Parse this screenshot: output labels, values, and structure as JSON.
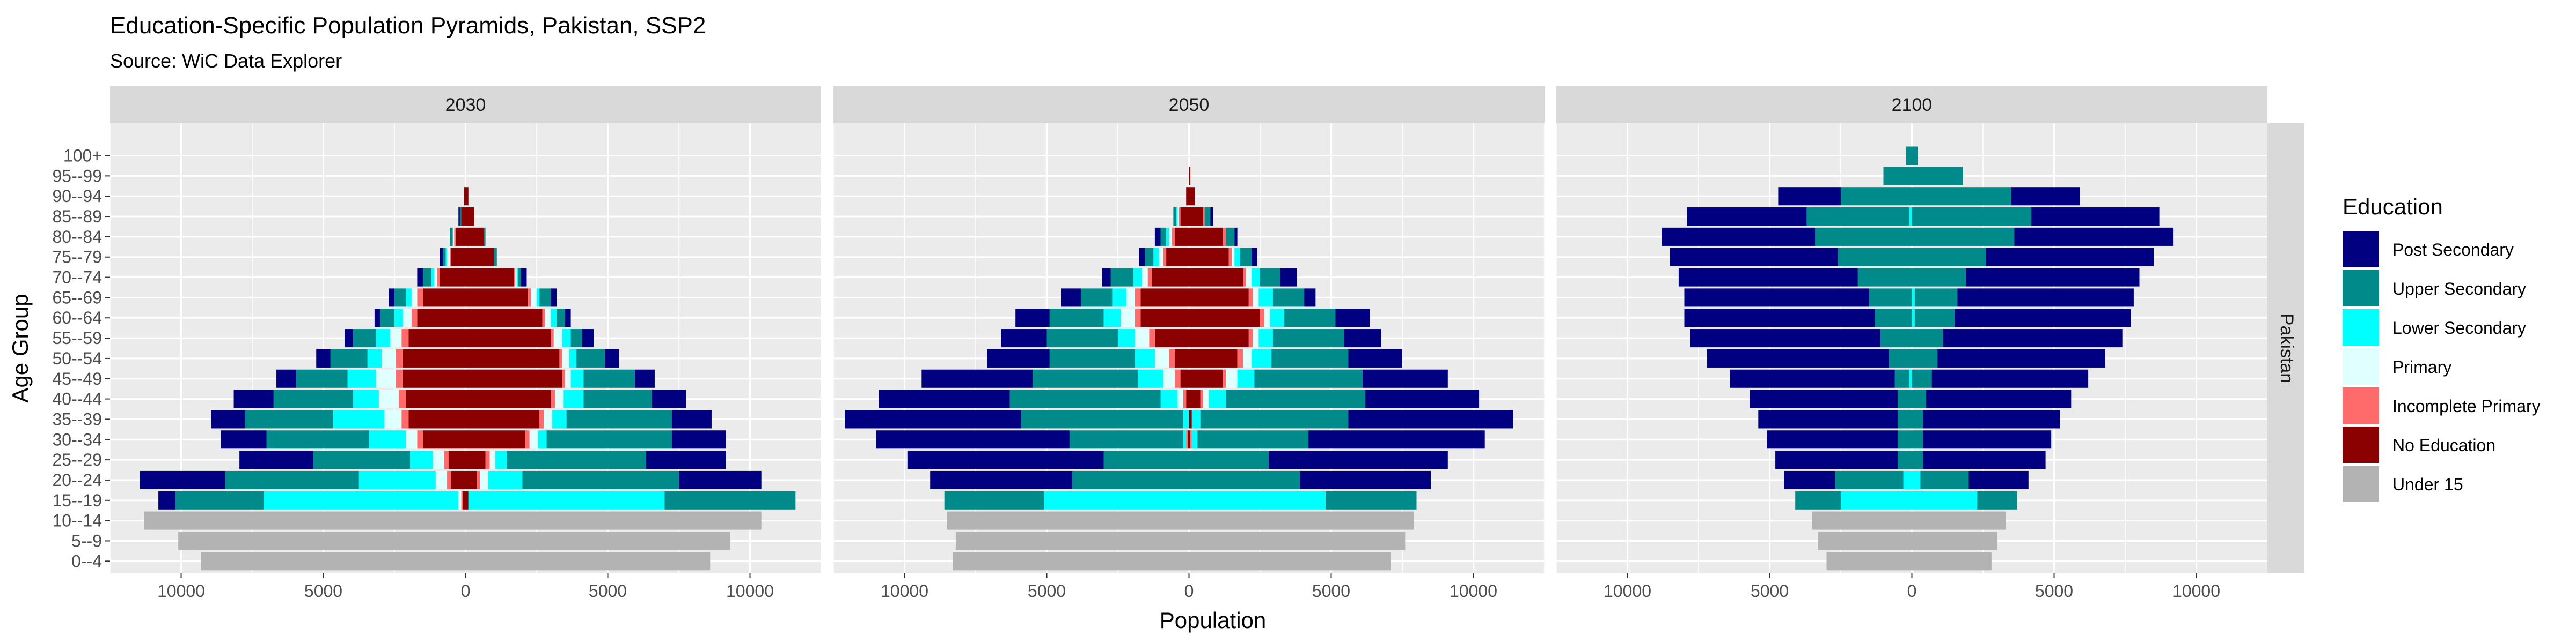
{
  "title": "Education-Specific Population Pyramids, Pakistan, SSP2",
  "subtitle": "Source: WiC Data Explorer",
  "strip_label": "Pakistan",
  "chart_data": {
    "type": "bar",
    "orientation": "horizontal-pyramid",
    "xlabel": "Population",
    "ylabel": "Age Group",
    "xlim": [
      -12500,
      12500
    ],
    "x_ticks": [
      -10000,
      -5000,
      0,
      5000,
      10000
    ],
    "x_tick_labels": [
      "10000",
      "5000",
      "0",
      "5000",
      "10000"
    ],
    "grid": true,
    "legend_position": "right",
    "legend_title": "Education",
    "age_groups": [
      "0--4",
      "5--9",
      "10--14",
      "15--19",
      "20--24",
      "25--29",
      "30--34",
      "35--39",
      "40--44",
      "45--49",
      "50--54",
      "55--59",
      "60--64",
      "65--69",
      "70--74",
      "75--79",
      "80--84",
      "85--89",
      "90--94",
      "95--99",
      "100+"
    ],
    "categories": [
      {
        "name": "No Education",
        "color": "#8b0000"
      },
      {
        "name": "Incomplete Primary",
        "color": "#ff6b6b"
      },
      {
        "name": "Primary",
        "color": "#e0ffff"
      },
      {
        "name": "Lower Secondary",
        "color": "#00ffff"
      },
      {
        "name": "Upper Secondary",
        "color": "#008b8b"
      },
      {
        "name": "Post Secondary",
        "color": "#000080"
      },
      {
        "name": "Under 15",
        "color": "#b3b3b3"
      }
    ],
    "legend_order": [
      "Post Secondary",
      "Upper Secondary",
      "Lower Secondary",
      "Primary",
      "Incomplete Primary",
      "No Education",
      "Under 15"
    ],
    "panels": [
      {
        "label": "2030",
        "male": [
          [
            0,
            0,
            0,
            0,
            0,
            0,
            9300
          ],
          [
            0,
            0,
            0,
            0,
            0,
            0,
            10100
          ],
          [
            0,
            0,
            0,
            0,
            0,
            0,
            11300
          ],
          [
            100,
            50,
            100,
            6850,
            3100,
            600,
            0
          ],
          [
            500,
            150,
            400,
            2700,
            4700,
            3000,
            0
          ],
          [
            600,
            150,
            400,
            800,
            3400,
            2600,
            0
          ],
          [
            1500,
            200,
            400,
            1300,
            3600,
            1600,
            0
          ],
          [
            2000,
            250,
            600,
            1800,
            3100,
            1200,
            0
          ],
          [
            2100,
            250,
            700,
            900,
            2800,
            1400,
            0
          ],
          [
            2200,
            250,
            700,
            1000,
            1800,
            700,
            0
          ],
          [
            2200,
            250,
            500,
            500,
            1300,
            500,
            0
          ],
          [
            2000,
            250,
            400,
            500,
            800,
            300,
            0
          ],
          [
            1700,
            200,
            300,
            300,
            500,
            200,
            0
          ],
          [
            1500,
            200,
            200,
            200,
            400,
            200,
            0
          ],
          [
            900,
            100,
            100,
            100,
            300,
            200,
            0
          ],
          [
            500,
            50,
            100,
            50,
            100,
            100,
            0
          ],
          [
            350,
            50,
            50,
            0,
            100,
            0,
            0
          ],
          [
            150,
            0,
            0,
            0,
            50,
            50,
            0
          ],
          [
            50,
            0,
            0,
            0,
            0,
            0,
            0
          ],
          [
            0,
            0,
            0,
            0,
            0,
            0,
            0
          ],
          [
            0,
            0,
            0,
            0,
            0,
            0,
            0
          ]
        ],
        "female": [
          [
            0,
            0,
            0,
            0,
            0,
            0,
            8600
          ],
          [
            0,
            0,
            0,
            0,
            0,
            0,
            9300
          ],
          [
            0,
            0,
            0,
            0,
            0,
            0,
            10400
          ],
          [
            100,
            0,
            0,
            6900,
            4600,
            0,
            0
          ],
          [
            400,
            100,
            300,
            1200,
            5500,
            2900,
            0
          ],
          [
            700,
            150,
            200,
            400,
            4900,
            2800,
            0
          ],
          [
            2100,
            150,
            300,
            300,
            4400,
            1900,
            0
          ],
          [
            2600,
            150,
            300,
            500,
            3700,
            1400,
            0
          ],
          [
            3000,
            150,
            300,
            700,
            2400,
            1200,
            0
          ],
          [
            3400,
            100,
            200,
            450,
            1800,
            700,
            0
          ],
          [
            3300,
            100,
            250,
            250,
            1000,
            500,
            0
          ],
          [
            3000,
            100,
            300,
            300,
            400,
            400,
            0
          ],
          [
            2700,
            100,
            200,
            200,
            300,
            200,
            0
          ],
          [
            2200,
            100,
            200,
            100,
            400,
            200,
            0
          ],
          [
            1700,
            50,
            50,
            50,
            100,
            200,
            0
          ],
          [
            1000,
            0,
            0,
            0,
            100,
            0,
            0
          ],
          [
            650,
            0,
            0,
            0,
            50,
            0,
            0
          ],
          [
            300,
            0,
            0,
            0,
            0,
            0,
            0
          ],
          [
            100,
            0,
            0,
            0,
            0,
            0,
            0
          ],
          [
            0,
            0,
            0,
            0,
            0,
            0,
            0
          ],
          [
            0,
            0,
            0,
            0,
            0,
            0,
            0
          ]
        ]
      },
      {
        "label": "2050",
        "male": [
          [
            0,
            0,
            0,
            0,
            0,
            0,
            8300
          ],
          [
            0,
            0,
            0,
            0,
            0,
            0,
            8200
          ],
          [
            0,
            0,
            0,
            0,
            0,
            0,
            8500
          ],
          [
            0,
            0,
            0,
            5100,
            3500,
            0,
            0
          ],
          [
            0,
            0,
            0,
            0,
            4100,
            5000,
            0
          ],
          [
            0,
            0,
            0,
            0,
            3000,
            6900,
            0
          ],
          [
            50,
            50,
            0,
            100,
            4000,
            6800,
            0
          ],
          [
            0,
            0,
            0,
            200,
            5700,
            6200,
            0
          ],
          [
            100,
            100,
            200,
            600,
            5300,
            4600,
            0
          ],
          [
            300,
            200,
            400,
            900,
            3700,
            3900,
            0
          ],
          [
            500,
            200,
            500,
            700,
            3000,
            2200,
            0
          ],
          [
            1200,
            200,
            500,
            600,
            2500,
            1600,
            0
          ],
          [
            1700,
            200,
            500,
            600,
            1900,
            1200,
            0
          ],
          [
            1700,
            200,
            300,
            500,
            1100,
            700,
            0
          ],
          [
            1300,
            150,
            200,
            300,
            800,
            300,
            0
          ],
          [
            800,
            100,
            150,
            200,
            300,
            200,
            0
          ],
          [
            500,
            100,
            100,
            100,
            200,
            200,
            0
          ],
          [
            300,
            50,
            50,
            50,
            100,
            0,
            0
          ],
          [
            100,
            0,
            0,
            0,
            0,
            0,
            0
          ],
          [
            0,
            0,
            0,
            0,
            0,
            0,
            0
          ],
          [
            0,
            0,
            0,
            0,
            0,
            0,
            0
          ]
        ],
        "female": [
          [
            0,
            0,
            0,
            0,
            0,
            0,
            7100
          ],
          [
            0,
            0,
            0,
            0,
            0,
            0,
            7600
          ],
          [
            0,
            0,
            0,
            0,
            0,
            0,
            7900
          ],
          [
            0,
            0,
            0,
            4800,
            3200,
            0,
            0
          ],
          [
            0,
            0,
            0,
            0,
            3900,
            4600,
            0
          ],
          [
            0,
            0,
            0,
            0,
            2800,
            6300,
            0
          ],
          [
            50,
            50,
            0,
            200,
            3900,
            6200,
            0
          ],
          [
            100,
            0,
            0,
            300,
            5200,
            5800,
            0
          ],
          [
            400,
            100,
            200,
            600,
            4900,
            4000,
            0
          ],
          [
            1200,
            100,
            400,
            600,
            3800,
            3000,
            0
          ],
          [
            1700,
            200,
            300,
            700,
            2700,
            1900,
            0
          ],
          [
            2100,
            150,
            200,
            500,
            2500,
            1300,
            0
          ],
          [
            2500,
            150,
            200,
            500,
            1800,
            1200,
            0
          ],
          [
            2100,
            150,
            200,
            500,
            1100,
            400,
            0
          ],
          [
            1900,
            100,
            200,
            300,
            700,
            600,
            0
          ],
          [
            1400,
            100,
            100,
            200,
            400,
            200,
            0
          ],
          [
            1200,
            100,
            0,
            0,
            300,
            100,
            0
          ],
          [
            500,
            50,
            0,
            0,
            200,
            100,
            0
          ],
          [
            200,
            0,
            0,
            0,
            0,
            0,
            0
          ],
          [
            50,
            0,
            0,
            0,
            0,
            0,
            0
          ],
          [
            0,
            0,
            0,
            0,
            0,
            0,
            0
          ]
        ]
      },
      {
        "label": "2100",
        "male": [
          [
            0,
            0,
            0,
            0,
            0,
            0,
            3000
          ],
          [
            0,
            0,
            0,
            0,
            0,
            0,
            3300
          ],
          [
            0,
            0,
            0,
            0,
            0,
            0,
            3500
          ],
          [
            0,
            0,
            0,
            2500,
            1600,
            0,
            0
          ],
          [
            0,
            0,
            0,
            300,
            2400,
            1800,
            0
          ],
          [
            0,
            0,
            0,
            0,
            500,
            4300,
            0
          ],
          [
            0,
            0,
            0,
            0,
            500,
            4600,
            0
          ],
          [
            0,
            0,
            0,
            0,
            500,
            4900,
            0
          ],
          [
            0,
            0,
            0,
            0,
            500,
            5200,
            0
          ],
          [
            0,
            0,
            0,
            100,
            500,
            5800,
            0
          ],
          [
            0,
            0,
            0,
            0,
            800,
            6400,
            0
          ],
          [
            0,
            0,
            0,
            0,
            1100,
            6700,
            0
          ],
          [
            0,
            0,
            0,
            0,
            1300,
            6700,
            0
          ],
          [
            0,
            0,
            0,
            0,
            1500,
            6500,
            0
          ],
          [
            0,
            0,
            0,
            0,
            1900,
            6300,
            0
          ],
          [
            0,
            0,
            0,
            0,
            2600,
            5900,
            0
          ],
          [
            0,
            0,
            0,
            0,
            3400,
            5400,
            0
          ],
          [
            0,
            0,
            0,
            100,
            3600,
            4200,
            0
          ],
          [
            0,
            0,
            0,
            0,
            2500,
            2200,
            0
          ],
          [
            0,
            0,
            0,
            0,
            1000,
            0,
            0
          ],
          [
            0,
            0,
            0,
            0,
            200,
            0,
            0
          ]
        ],
        "female": [
          [
            0,
            0,
            0,
            0,
            0,
            0,
            2800
          ],
          [
            0,
            0,
            0,
            0,
            0,
            0,
            3000
          ],
          [
            0,
            0,
            0,
            0,
            0,
            0,
            3300
          ],
          [
            0,
            0,
            0,
            2300,
            1400,
            0,
            0
          ],
          [
            0,
            0,
            0,
            300,
            1700,
            2100,
            0
          ],
          [
            0,
            0,
            0,
            0,
            400,
            4300,
            0
          ],
          [
            0,
            0,
            0,
            0,
            400,
            4500,
            0
          ],
          [
            0,
            0,
            0,
            0,
            400,
            4800,
            0
          ],
          [
            0,
            0,
            0,
            0,
            500,
            5100,
            0
          ],
          [
            0,
            0,
            0,
            0,
            700,
            5500,
            0
          ],
          [
            0,
            0,
            0,
            0,
            900,
            5900,
            0
          ],
          [
            0,
            0,
            0,
            0,
            1100,
            6300,
            0
          ],
          [
            0,
            0,
            0,
            100,
            1400,
            6200,
            0
          ],
          [
            0,
            0,
            0,
            100,
            1500,
            6200,
            0
          ],
          [
            0,
            0,
            0,
            0,
            1900,
            6100,
            0
          ],
          [
            0,
            0,
            0,
            0,
            2600,
            5900,
            0
          ],
          [
            0,
            0,
            0,
            0,
            3600,
            5600,
            0
          ],
          [
            0,
            0,
            0,
            0,
            4200,
            4500,
            0
          ],
          [
            0,
            0,
            0,
            0,
            3500,
            2400,
            0
          ],
          [
            0,
            0,
            0,
            0,
            1800,
            0,
            0
          ],
          [
            0,
            0,
            0,
            0,
            200,
            0,
            0
          ]
        ]
      }
    ]
  }
}
